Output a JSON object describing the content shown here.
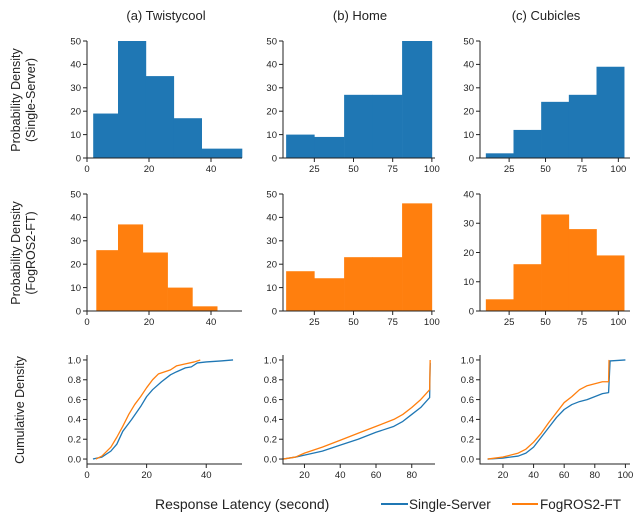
{
  "colors": {
    "single_server": "#1f77b4",
    "fogros2_ft": "#ff7f0e"
  },
  "column_titles": [
    "(a) Twistycool",
    "(b) Home",
    "(c) Cubicles"
  ],
  "row_labels": [
    [
      "Probability Density",
      "(Single-Server)"
    ],
    [
      "Probability Density",
      "(FogROS2-FT)"
    ],
    [
      "Cumulative Density"
    ]
  ],
  "xlabel": "Response Latency (second)",
  "legend": [
    {
      "label": "Single-Server",
      "color": "#1f77b4"
    },
    {
      "label": "FogROS2-FT",
      "color": "#ff7f0e"
    }
  ],
  "chart_data": [
    {
      "type": "bar",
      "row": 0,
      "col": 0,
      "subplot": "Twistycool / Single-Server",
      "color": "#1f77b4",
      "bin_edges": [
        2,
        10,
        19,
        28,
        37,
        50
      ],
      "values": [
        19,
        50,
        35,
        17,
        4
      ],
      "xlim": [
        0,
        50
      ],
      "ylim": [
        0,
        50
      ],
      "xticks": [
        0,
        20,
        40
      ],
      "yticks": [
        0,
        10,
        20,
        30,
        40,
        50
      ]
    },
    {
      "type": "bar",
      "row": 0,
      "col": 1,
      "subplot": "Home / Single-Server",
      "color": "#1f77b4",
      "bin_edges": [
        7,
        25,
        44,
        62,
        81,
        100
      ],
      "values": [
        10,
        9,
        27,
        27,
        50
      ],
      "xlim": [
        5,
        102
      ],
      "ylim": [
        0,
        50
      ],
      "xticks": [
        25,
        50,
        75,
        100
      ],
      "yticks": [
        0,
        10,
        20,
        30,
        40,
        50
      ]
    },
    {
      "type": "bar",
      "row": 0,
      "col": 2,
      "subplot": "Cubicles / Single-Server",
      "color": "#1f77b4",
      "bin_edges": [
        9,
        28,
        47,
        66,
        85,
        104
      ],
      "values": [
        2,
        12,
        24,
        27,
        39
      ],
      "xlim": [
        5,
        108
      ],
      "ylim": [
        0,
        50
      ],
      "xticks": [
        25,
        50,
        75,
        100
      ],
      "yticks": [
        0,
        10,
        20,
        30,
        40,
        50
      ]
    },
    {
      "type": "bar",
      "row": 1,
      "col": 0,
      "subplot": "Twistycool / FogROS2-FT",
      "color": "#ff7f0e",
      "bin_edges": [
        3,
        10,
        18,
        26,
        34,
        42
      ],
      "values": [
        26,
        37,
        25,
        10,
        2
      ],
      "xlim": [
        0,
        50
      ],
      "ylim": [
        0,
        50
      ],
      "xticks": [
        0,
        20,
        40
      ],
      "yticks": [
        0,
        10,
        20,
        30,
        40,
        50
      ]
    },
    {
      "type": "bar",
      "row": 1,
      "col": 1,
      "subplot": "Home / FogROS2-FT",
      "color": "#ff7f0e",
      "bin_edges": [
        7,
        25,
        44,
        62,
        81,
        100
      ],
      "values": [
        17,
        14,
        23,
        23,
        46
      ],
      "xlim": [
        5,
        102
      ],
      "ylim": [
        0,
        50
      ],
      "xticks": [
        25,
        50,
        75,
        100
      ],
      "yticks": [
        0,
        10,
        20,
        30,
        40,
        50
      ]
    },
    {
      "type": "bar",
      "row": 1,
      "col": 2,
      "subplot": "Cubicles / FogROS2-FT",
      "color": "#ff7f0e",
      "bin_edges": [
        9,
        28,
        47,
        66,
        85,
        104
      ],
      "values": [
        4,
        16,
        33,
        28,
        19
      ],
      "xlim": [
        5,
        108
      ],
      "ylim": [
        0,
        40
      ],
      "xticks": [
        25,
        50,
        75,
        100
      ],
      "yticks": [
        0,
        10,
        20,
        30,
        40
      ]
    },
    {
      "type": "line",
      "row": 2,
      "col": 0,
      "subplot": "Twistycool CDF",
      "xlim": [
        0,
        52
      ],
      "ylim": [
        -0.05,
        1.05
      ],
      "xticks": [
        0,
        20,
        40
      ],
      "yticks": [
        0.0,
        0.2,
        0.4,
        0.6,
        0.8,
        1.0
      ],
      "series": [
        {
          "name": "Single-Server",
          "color": "#1f77b4",
          "x": [
            2,
            5,
            8,
            10,
            12,
            15,
            18,
            20,
            22,
            25,
            28,
            30,
            33,
            35,
            37,
            40,
            45,
            49
          ],
          "y": [
            0.0,
            0.02,
            0.08,
            0.15,
            0.28,
            0.4,
            0.53,
            0.63,
            0.7,
            0.78,
            0.85,
            0.88,
            0.92,
            0.93,
            0.97,
            0.98,
            0.99,
            1.0
          ]
        },
        {
          "name": "FogROS2-FT",
          "color": "#ff7f0e",
          "x": [
            3,
            5,
            8,
            10,
            12,
            14,
            16,
            18,
            20,
            22,
            24,
            26,
            28,
            30,
            33,
            36,
            38
          ],
          "y": [
            0.0,
            0.03,
            0.12,
            0.22,
            0.33,
            0.45,
            0.55,
            0.63,
            0.72,
            0.8,
            0.86,
            0.88,
            0.9,
            0.94,
            0.96,
            0.98,
            1.0
          ]
        }
      ]
    },
    {
      "type": "line",
      "row": 2,
      "col": 1,
      "subplot": "Home CDF",
      "xlim": [
        8,
        93
      ],
      "ylim": [
        -0.05,
        1.05
      ],
      "xticks": [
        20,
        40,
        60,
        80
      ],
      "yticks": [
        0.0,
        0.2,
        0.4,
        0.6,
        0.8,
        1.0
      ],
      "series": [
        {
          "name": "Single-Server",
          "color": "#1f77b4",
          "x": [
            8,
            15,
            20,
            30,
            40,
            50,
            60,
            70,
            75,
            80,
            85,
            88,
            90,
            90.3
          ],
          "y": [
            0.0,
            0.02,
            0.04,
            0.08,
            0.14,
            0.2,
            0.27,
            0.33,
            0.38,
            0.45,
            0.52,
            0.58,
            0.62,
            0.97
          ]
        },
        {
          "name": "FogROS2-FT",
          "color": "#ff7f0e",
          "x": [
            8,
            15,
            20,
            30,
            40,
            50,
            60,
            70,
            75,
            80,
            85,
            88,
            90,
            90.3
          ],
          "y": [
            0.0,
            0.02,
            0.06,
            0.12,
            0.19,
            0.26,
            0.33,
            0.4,
            0.45,
            0.52,
            0.6,
            0.66,
            0.7,
            1.0
          ]
        }
      ]
    },
    {
      "type": "line",
      "row": 2,
      "col": 2,
      "subplot": "Cubicles CDF",
      "xlim": [
        5,
        103
      ],
      "ylim": [
        -0.05,
        1.05
      ],
      "xticks": [
        20,
        40,
        60,
        80,
        100
      ],
      "yticks": [
        0.0,
        0.2,
        0.4,
        0.6,
        0.8,
        1.0
      ],
      "series": [
        {
          "name": "Single-Server",
          "color": "#1f77b4",
          "x": [
            10,
            20,
            30,
            35,
            40,
            45,
            50,
            55,
            60,
            65,
            70,
            75,
            80,
            85,
            89,
            90,
            100
          ],
          "y": [
            0.0,
            0.01,
            0.03,
            0.06,
            0.12,
            0.22,
            0.32,
            0.42,
            0.5,
            0.55,
            0.58,
            0.6,
            0.63,
            0.66,
            0.67,
            0.99,
            1.0
          ]
        },
        {
          "name": "FogROS2-FT",
          "color": "#ff7f0e",
          "x": [
            10,
            20,
            30,
            35,
            40,
            45,
            50,
            55,
            60,
            65,
            70,
            75,
            80,
            85,
            89,
            89.3
          ],
          "y": [
            0.0,
            0.02,
            0.06,
            0.1,
            0.17,
            0.26,
            0.37,
            0.47,
            0.57,
            0.63,
            0.7,
            0.74,
            0.76,
            0.78,
            0.78,
            1.0
          ]
        }
      ]
    }
  ]
}
